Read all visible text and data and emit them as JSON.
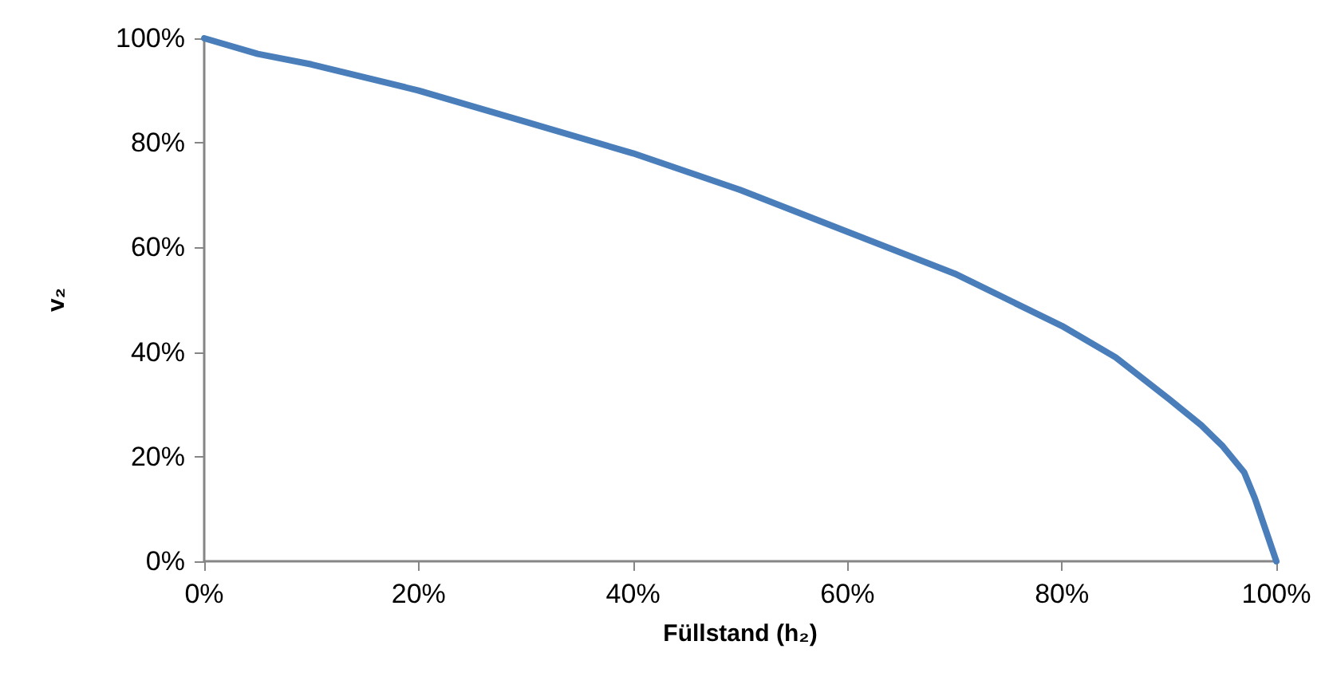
{
  "chart_data": {
    "type": "line",
    "xlabel": "Füllstand (h₂)",
    "ylabel": "v₂",
    "x": [
      0,
      5,
      10,
      20,
      30,
      40,
      50,
      60,
      70,
      80,
      85,
      90,
      93,
      95,
      97,
      98,
      99,
      100
    ],
    "series": [
      {
        "color": "#4a7ebb",
        "values": [
          100,
          97,
          95,
          90,
          84,
          78,
          71,
          63,
          55,
          45,
          39,
          31,
          26,
          22,
          17,
          12,
          6,
          0
        ]
      }
    ],
    "xlim": [
      0,
      100
    ],
    "ylim": [
      0,
      100
    ],
    "xticks": [
      {
        "value": 0,
        "label": "0%"
      },
      {
        "value": 20,
        "label": "20%"
      },
      {
        "value": 40,
        "label": "40%"
      },
      {
        "value": 60,
        "label": "60%"
      },
      {
        "value": 80,
        "label": "80%"
      },
      {
        "value": 100,
        "label": "100%"
      }
    ],
    "yticks": [
      {
        "value": 0,
        "label": "0%"
      },
      {
        "value": 20,
        "label": "20%"
      },
      {
        "value": 40,
        "label": "40%"
      },
      {
        "value": 60,
        "label": "60%"
      },
      {
        "value": 80,
        "label": "80%"
      },
      {
        "value": 100,
        "label": "100%"
      }
    ],
    "grid": false,
    "marker": "none",
    "line_style": "solid"
  }
}
